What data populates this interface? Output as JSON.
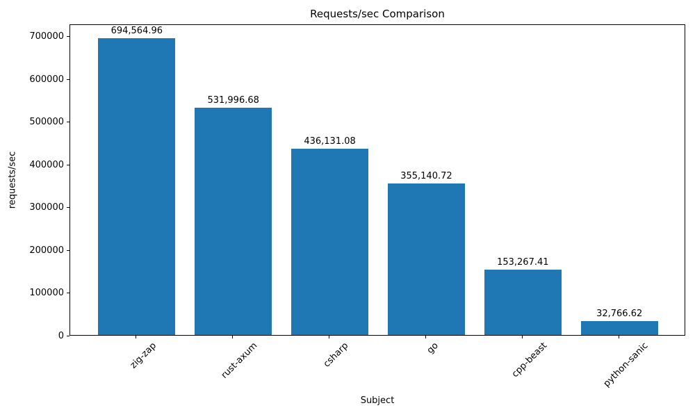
{
  "chart_data": {
    "type": "bar",
    "title": "Requests/sec Comparison",
    "xlabel": "Subject",
    "ylabel": "requests/sec",
    "categories": [
      "zig-zap",
      "rust-axum",
      "csharp",
      "go",
      "cpp-beast",
      "python-sanic"
    ],
    "values": [
      694564.96,
      531996.68,
      436131.08,
      355140.72,
      153267.41,
      32766.62
    ],
    "bar_value_labels": [
      "694,564.96",
      "531,996.68",
      "436,131.08",
      "355,140.72",
      "153,267.41",
      "32,766.62"
    ],
    "yticks": [
      0,
      100000,
      200000,
      300000,
      400000,
      500000,
      600000,
      700000
    ],
    "ytick_labels": [
      "0",
      "100000",
      "200000",
      "300000",
      "400000",
      "500000",
      "600000",
      "700000"
    ],
    "ylim": [
      0,
      729293
    ],
    "xtick_rotation_deg": 45,
    "grid": false,
    "legend": null,
    "colors": {
      "bar": "#1f77b4",
      "axis": "#000000",
      "text": "#000000",
      "background": "#ffffff"
    }
  }
}
